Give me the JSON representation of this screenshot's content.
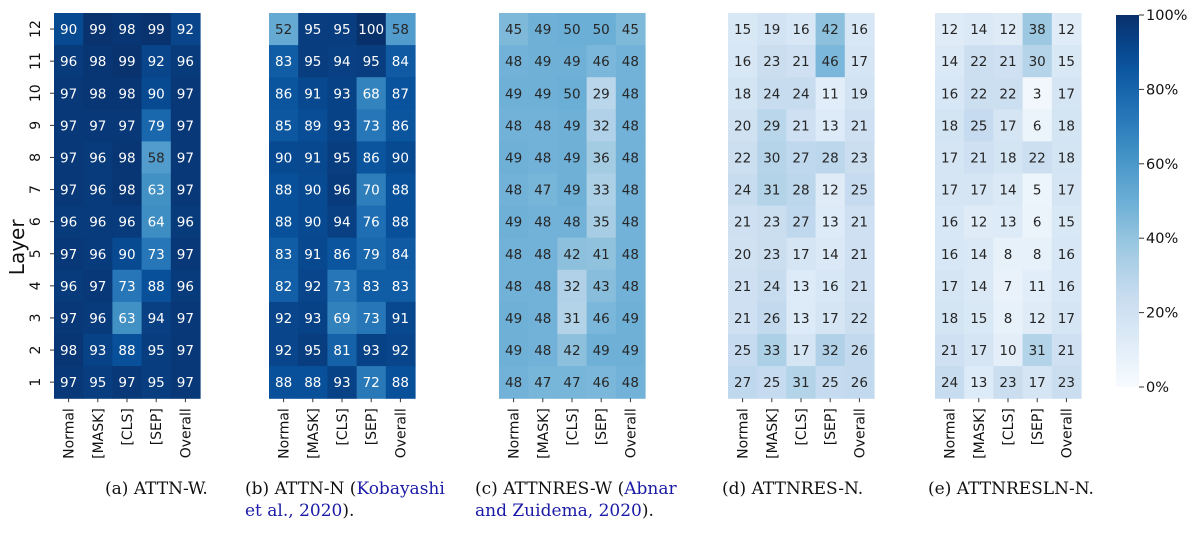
{
  "chart_data": [
    {
      "type": "heatmap",
      "panel_label": "(a)",
      "panel_name": "ATTN-W.",
      "citation": "",
      "columns": [
        "Normal",
        "[MASK]",
        "[CLS]",
        "[SEP]",
        "Overall"
      ],
      "layers": [
        "12",
        "11",
        "10",
        "9",
        "8",
        "7",
        "6",
        "5",
        "4",
        "3",
        "2",
        "1"
      ],
      "ylabel": "Layer",
      "values": [
        [
          90,
          99,
          98,
          99,
          92
        ],
        [
          96,
          98,
          99,
          92,
          96
        ],
        [
          97,
          98,
          98,
          90,
          97
        ],
        [
          97,
          97,
          97,
          79,
          97
        ],
        [
          97,
          96,
          98,
          58,
          97
        ],
        [
          97,
          96,
          98,
          63,
          97
        ],
        [
          96,
          96,
          96,
          64,
          96
        ],
        [
          97,
          96,
          90,
          73,
          97
        ],
        [
          96,
          97,
          73,
          88,
          96
        ],
        [
          97,
          96,
          63,
          94,
          97
        ],
        [
          98,
          93,
          88,
          95,
          97
        ],
        [
          97,
          95,
          97,
          95,
          97
        ]
      ]
    },
    {
      "type": "heatmap",
      "panel_label": "(b)",
      "panel_name": "ATTN-N",
      "citation": "Kobayashi et al., 2020",
      "columns": [
        "Normal",
        "[MASK]",
        "[CLS]",
        "[SEP]",
        "Overall"
      ],
      "layers": [
        "12",
        "11",
        "10",
        "9",
        "8",
        "7",
        "6",
        "5",
        "4",
        "3",
        "2",
        "1"
      ],
      "values": [
        [
          52,
          95,
          95,
          100,
          58
        ],
        [
          83,
          95,
          94,
          95,
          84
        ],
        [
          86,
          91,
          93,
          68,
          87
        ],
        [
          85,
          89,
          93,
          73,
          86
        ],
        [
          90,
          91,
          95,
          86,
          90
        ],
        [
          88,
          90,
          96,
          70,
          88
        ],
        [
          88,
          90,
          94,
          76,
          88
        ],
        [
          83,
          91,
          86,
          79,
          84
        ],
        [
          82,
          92,
          73,
          83,
          83
        ],
        [
          92,
          93,
          69,
          73,
          91
        ],
        [
          92,
          95,
          81,
          93,
          92
        ],
        [
          88,
          88,
          93,
          72,
          88
        ]
      ]
    },
    {
      "type": "heatmap",
      "panel_label": "(c)",
      "panel_name": "ATTNRES-W",
      "citation": "Abnar and Zuidema, 2020",
      "columns": [
        "Normal",
        "[MASK]",
        "[CLS]",
        "[SEP]",
        "Overall"
      ],
      "layers": [
        "12",
        "11",
        "10",
        "9",
        "8",
        "7",
        "6",
        "5",
        "4",
        "3",
        "2",
        "1"
      ],
      "values": [
        [
          45,
          49,
          50,
          50,
          45
        ],
        [
          48,
          49,
          49,
          46,
          48
        ],
        [
          49,
          49,
          50,
          29,
          48
        ],
        [
          48,
          48,
          49,
          32,
          48
        ],
        [
          49,
          48,
          49,
          36,
          48
        ],
        [
          48,
          47,
          49,
          33,
          48
        ],
        [
          49,
          48,
          48,
          35,
          48
        ],
        [
          48,
          48,
          42,
          41,
          48
        ],
        [
          48,
          48,
          32,
          43,
          48
        ],
        [
          49,
          48,
          31,
          46,
          49
        ],
        [
          49,
          48,
          42,
          49,
          49
        ],
        [
          48,
          47,
          47,
          46,
          48
        ]
      ]
    },
    {
      "type": "heatmap",
      "panel_label": "(d)",
      "panel_name": "ATTNRES-N.",
      "citation": "",
      "columns": [
        "Normal",
        "[MASK]",
        "[CLS]",
        "[SEP]",
        "Overall"
      ],
      "layers": [
        "12",
        "11",
        "10",
        "9",
        "8",
        "7",
        "6",
        "5",
        "4",
        "3",
        "2",
        "1"
      ],
      "values": [
        [
          15,
          19,
          16,
          42,
          16
        ],
        [
          16,
          23,
          21,
          46,
          17
        ],
        [
          18,
          24,
          24,
          11,
          19
        ],
        [
          20,
          29,
          21,
          13,
          21
        ],
        [
          22,
          30,
          27,
          28,
          23
        ],
        [
          24,
          31,
          28,
          12,
          25
        ],
        [
          21,
          23,
          27,
          13,
          21
        ],
        [
          20,
          23,
          17,
          14,
          21
        ],
        [
          21,
          24,
          13,
          16,
          21
        ],
        [
          21,
          26,
          13,
          17,
          22
        ],
        [
          25,
          33,
          17,
          32,
          26
        ],
        [
          27,
          25,
          31,
          25,
          26
        ]
      ]
    },
    {
      "type": "heatmap",
      "panel_label": "(e)",
      "panel_name": "ATTNRESLN-N.",
      "citation": "",
      "columns": [
        "Normal",
        "[MASK]",
        "[CLS]",
        "[SEP]",
        "Overall"
      ],
      "layers": [
        "12",
        "11",
        "10",
        "9",
        "8",
        "7",
        "6",
        "5",
        "4",
        "3",
        "2",
        "1"
      ],
      "values": [
        [
          12,
          14,
          12,
          38,
          12
        ],
        [
          14,
          22,
          21,
          30,
          15
        ],
        [
          16,
          22,
          22,
          3,
          17
        ],
        [
          18,
          25,
          17,
          6,
          18
        ],
        [
          17,
          21,
          18,
          22,
          18
        ],
        [
          17,
          17,
          14,
          5,
          17
        ],
        [
          16,
          12,
          13,
          6,
          15
        ],
        [
          16,
          14,
          8,
          8,
          16
        ],
        [
          17,
          14,
          7,
          11,
          16
        ],
        [
          18,
          15,
          8,
          12,
          17
        ],
        [
          21,
          17,
          10,
          31,
          21
        ],
        [
          24,
          13,
          23,
          17,
          23
        ]
      ]
    }
  ],
  "colorbar": {
    "range": [
      0,
      100
    ],
    "ticks": [
      "0%",
      "20%",
      "40%",
      "60%",
      "80%",
      "100%"
    ],
    "colormap": "Blues"
  }
}
